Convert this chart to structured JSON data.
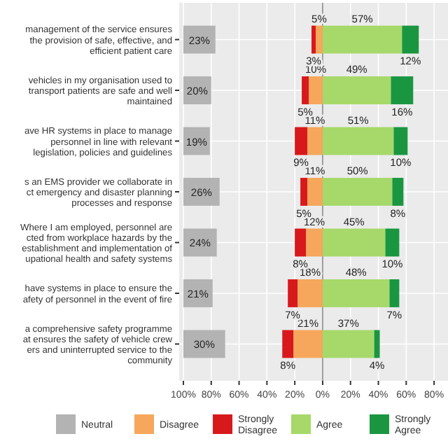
{
  "chart_data": {
    "type": "bar",
    "orientation": "horizontal",
    "categories": [
      "management of the service ensures\nthe provision of safe, effective, and\nefficient patient care",
      "vehicles in my organisation used to\ntransport patients are safe and well\nmaintained",
      "ave HR systems in place to manage\npersonnel in line with relevant\nlegislation, policies and guidelines",
      "s an EMS provider we collaborate in\nct emergency and disaster planning\nprocesses and response",
      "Where I am employed, personnel are\ncted from workplace hazards by the\nestablishment and implementation of\nupational health and safety systems",
      "have systems in place to ensure the\nafety of personnel in the event of fire",
      "a comprehensive safety programme\nat ensures the safety of vehicle crew\ners and uninterrupted service to the\ncommunity"
    ],
    "series": [
      {
        "name": "Neutral",
        "color": "#b3b3b3",
        "base": [
          -100,
          -100,
          -100,
          -100,
          -100,
          -100,
          -100
        ],
        "values": [
          23,
          20,
          19,
          26,
          24,
          21,
          30
        ],
        "value_labels": [
          "23%",
          "20%",
          "19%",
          "26%",
          "24%",
          "21%",
          "30%"
        ]
      },
      {
        "name": "Disagree",
        "color": "#f6a75c",
        "base": [
          -5,
          -10,
          -11,
          -11,
          -12,
          -18,
          -21
        ],
        "values": [
          5,
          10,
          11,
          11,
          12,
          18,
          21
        ],
        "value_labels": [
          "5%",
          "10%",
          "11%",
          "11%",
          "12%",
          "18%",
          "21%"
        ]
      },
      {
        "name": "Strongly Disagree",
        "color": "#d7191c",
        "base": [
          -8,
          -15,
          -20,
          -16,
          -20,
          -25,
          -29
        ],
        "values": [
          3,
          5,
          9,
          5,
          8,
          7,
          8
        ],
        "value_labels": [
          "3%",
          "5%",
          "9%",
          "5%",
          "8%",
          "7%",
          "8%"
        ]
      },
      {
        "name": "Agree",
        "color": "#a6d96a",
        "base": [
          0,
          0,
          0,
          0,
          0,
          0,
          0
        ],
        "values": [
          57,
          49,
          51,
          50,
          45,
          48,
          37
        ],
        "value_labels": [
          "57%",
          "49%",
          "51%",
          "50%",
          "45%",
          "48%",
          "37%"
        ]
      },
      {
        "name": "Strongly Agree",
        "color": "#1a9641",
        "base": [
          57,
          49,
          51,
          50,
          45,
          48,
          37
        ],
        "values": [
          12,
          16,
          10,
          8,
          10,
          7,
          4
        ],
        "value_labels": [
          "12%",
          "16%",
          "10%",
          "8%",
          "10%",
          "7%",
          "4%"
        ]
      }
    ],
    "xlim": [
      -103,
      90
    ],
    "xticks": [
      {
        "value": -100,
        "label": "100%"
      },
      {
        "value": -80,
        "label": "80%"
      },
      {
        "value": -60,
        "label": "60%"
      },
      {
        "value": -40,
        "label": "40%"
      },
      {
        "value": -20,
        "label": "20%"
      },
      {
        "value": 0,
        "label": "0%"
      },
      {
        "value": 20,
        "label": "20%"
      },
      {
        "value": 40,
        "label": "40%"
      },
      {
        "value": 60,
        "label": "60%"
      },
      {
        "value": 80,
        "label": "80%"
      }
    ],
    "grid": true,
    "legend": "bottom"
  }
}
